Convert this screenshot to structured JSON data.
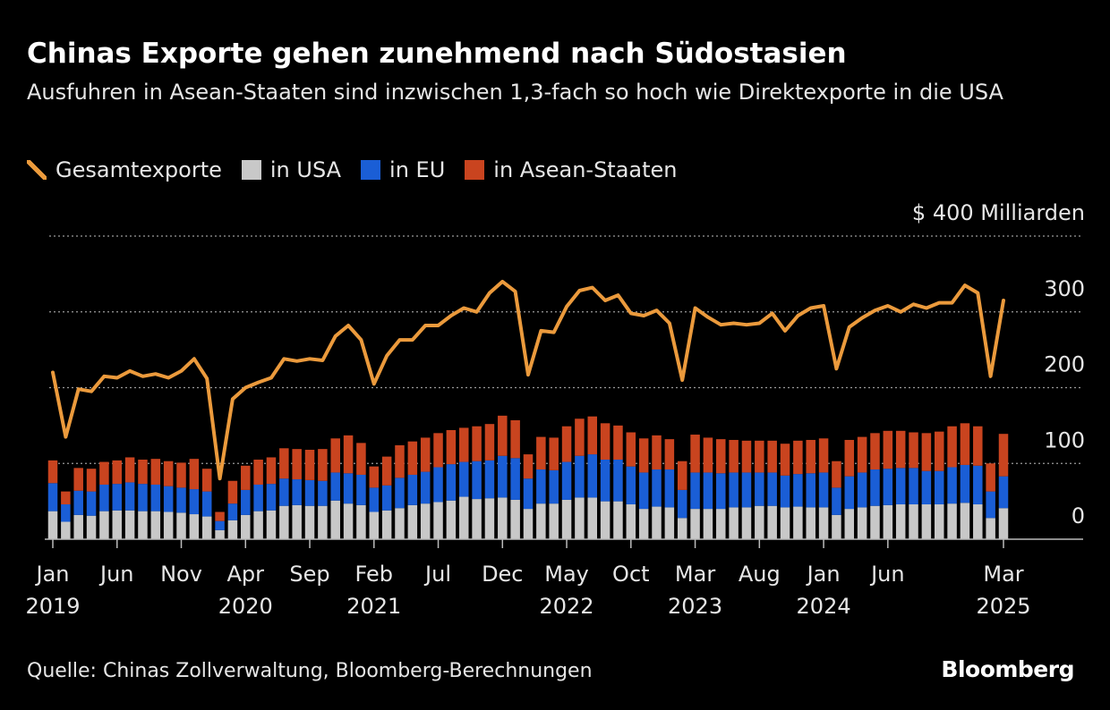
{
  "chart_data": {
    "type": "bar+line",
    "title": "Chinas Exporte gehen zunehmend nach Südostasien",
    "subtitle": "Ausfuhren in Asean-Staaten sind inzwischen 1,3-fach so hoch wie Direktexporte in die USA",
    "source": "Quelle: Chinas Zollverwaltung, Bloomberg-Berechnungen",
    "brand": "Bloomberg",
    "x": [
      "2019-01",
      "2019-02",
      "2019-03",
      "2019-04",
      "2019-05",
      "2019-06",
      "2019-07",
      "2019-08",
      "2019-09",
      "2019-10",
      "2019-11",
      "2019-12",
      "2020-01",
      "2020-02",
      "2020-03",
      "2020-04",
      "2020-05",
      "2020-06",
      "2020-07",
      "2020-08",
      "2020-09",
      "2020-10",
      "2020-11",
      "2020-12",
      "2021-01",
      "2021-02",
      "2021-03",
      "2021-04",
      "2021-05",
      "2021-06",
      "2021-07",
      "2021-08",
      "2021-09",
      "2021-10",
      "2021-11",
      "2021-12",
      "2022-01",
      "2022-02",
      "2022-03",
      "2022-04",
      "2022-05",
      "2022-06",
      "2022-07",
      "2022-08",
      "2022-09",
      "2022-10",
      "2022-11",
      "2022-12",
      "2023-01",
      "2023-02",
      "2023-03",
      "2023-04",
      "2023-05",
      "2023-06",
      "2023-07",
      "2023-08",
      "2023-09",
      "2023-10",
      "2023-11",
      "2023-12",
      "2024-01",
      "2024-02",
      "2024-03",
      "2024-04",
      "2024-05",
      "2024-06",
      "2024-07",
      "2024-08",
      "2024-09",
      "2024-10",
      "2024-11",
      "2024-12",
      "2025-01",
      "2025-02",
      "2025-03"
    ],
    "xticks": [
      {
        "value": "2019-01",
        "label": "Jan",
        "year": "2019"
      },
      {
        "value": "2019-06",
        "label": "Jun"
      },
      {
        "value": "2019-11",
        "label": "Nov"
      },
      {
        "value": "2020-04",
        "label": "Apr",
        "year": "2020"
      },
      {
        "value": "2020-09",
        "label": "Sep"
      },
      {
        "value": "2021-02",
        "label": "Feb",
        "year": "2021"
      },
      {
        "value": "2021-07",
        "label": "Jul"
      },
      {
        "value": "2021-12",
        "label": "Dec"
      },
      {
        "value": "2022-05",
        "label": "May",
        "year": "2022"
      },
      {
        "value": "2022-10",
        "label": "Oct"
      },
      {
        "value": "2023-03",
        "label": "Mar",
        "year": "2023"
      },
      {
        "value": "2023-08",
        "label": "Aug"
      },
      {
        "value": "2024-01",
        "label": "Jan",
        "year": "2024"
      },
      {
        "value": "2024-06",
        "label": "Jun"
      },
      {
        "value": "2025-03",
        "label": "Mar",
        "year": "2025"
      }
    ],
    "ylim": [
      0,
      400
    ],
    "yticks": [
      0,
      100,
      200,
      {
        "value": 400,
        "label": "$ 400 Milliarden"
      },
      300
    ],
    "grid": true,
    "series": [
      {
        "name": "Gesamtexporte",
        "type": "line",
        "color": "#eb9a3c",
        "values": [
          220,
          135,
          198,
          195,
          215,
          213,
          222,
          215,
          218,
          213,
          222,
          238,
          212,
          80,
          185,
          200,
          207,
          213,
          238,
          235,
          238,
          236,
          268,
          282,
          263,
          205,
          242,
          263,
          263,
          282,
          282,
          295,
          305,
          300,
          325,
          340,
          327,
          217,
          275,
          273,
          307,
          328,
          332,
          315,
          322,
          298,
          295,
          302,
          285,
          210,
          305,
          293,
          283,
          285,
          283,
          285,
          298,
          275,
          295,
          305,
          308,
          225,
          280,
          292,
          302,
          308,
          300,
          310,
          305,
          312,
          312,
          335,
          325,
          215,
          315
        ]
      },
      {
        "name": "in USA",
        "type": "bar",
        "color": "#c8c8c8",
        "values": [
          37,
          23,
          32,
          31,
          37,
          38,
          38,
          37,
          37,
          36,
          35,
          33,
          30,
          12,
          25,
          32,
          37,
          38,
          44,
          45,
          44,
          44,
          51,
          47,
          45,
          36,
          38,
          41,
          45,
          47,
          49,
          51,
          56,
          53,
          54,
          55,
          52,
          40,
          47,
          47,
          52,
          55,
          55,
          50,
          50,
          46,
          40,
          43,
          42,
          28,
          40,
          40,
          40,
          42,
          42,
          44,
          44,
          42,
          43,
          42,
          42,
          32,
          40,
          42,
          44,
          45,
          46,
          46,
          46,
          46,
          47,
          48,
          46,
          28,
          41
        ]
      },
      {
        "name": "in EU",
        "type": "bar",
        "color": "#1a5ed6",
        "values": [
          37,
          23,
          32,
          32,
          35,
          35,
          37,
          36,
          35,
          34,
          33,
          33,
          33,
          12,
          22,
          33,
          35,
          35,
          36,
          34,
          34,
          33,
          37,
          40,
          40,
          32,
          33,
          40,
          40,
          42,
          46,
          48,
          46,
          50,
          50,
          55,
          55,
          40,
          45,
          44,
          50,
          55,
          57,
          55,
          55,
          50,
          48,
          49,
          50,
          37,
          48,
          48,
          47,
          46,
          46,
          44,
          44,
          42,
          43,
          45,
          46,
          36,
          43,
          46,
          48,
          48,
          48,
          48,
          44,
          44,
          48,
          50,
          51,
          35,
          42
        ]
      },
      {
        "name": "in Asean-Staaten",
        "type": "bar",
        "color": "#c9441f",
        "values": [
          30,
          17,
          30,
          30,
          30,
          31,
          33,
          32,
          34,
          33,
          33,
          40,
          30,
          12,
          30,
          32,
          33,
          35,
          40,
          40,
          40,
          42,
          45,
          50,
          42,
          28,
          38,
          43,
          44,
          45,
          45,
          45,
          45,
          46,
          48,
          53,
          50,
          32,
          43,
          43,
          47,
          49,
          50,
          48,
          45,
          45,
          45,
          45,
          40,
          38,
          50,
          46,
          45,
          43,
          42,
          42,
          42,
          42,
          44,
          44,
          45,
          35,
          48,
          47,
          48,
          50,
          49,
          47,
          50,
          52,
          54,
          55,
          52,
          37,
          56
        ]
      }
    ]
  }
}
